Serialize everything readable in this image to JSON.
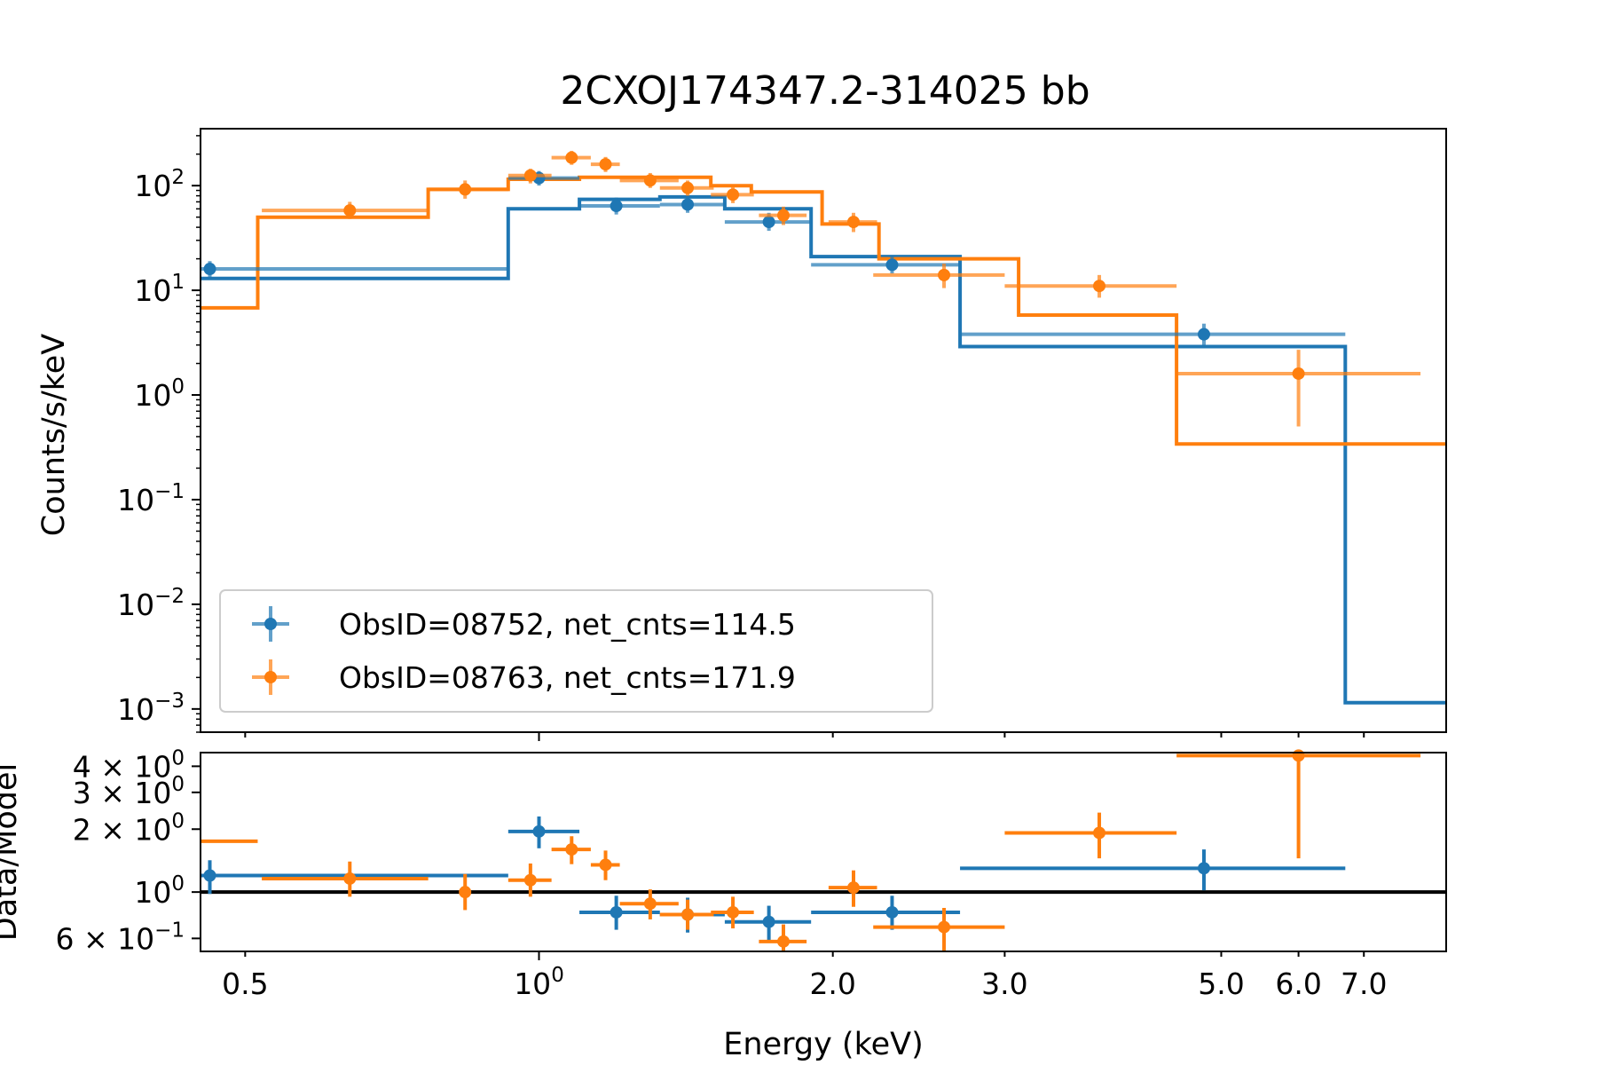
{
  "chart_data": {
    "title": "2CXOJ174347.2-314025 bb",
    "xlabel": "Energy (keV)",
    "x_scale": "log",
    "xlim": [
      0.45,
      8.5
    ],
    "x_ticks": [
      {
        "value": 0.5,
        "label": "0.5"
      },
      {
        "value": 1.0,
        "label": "10",
        "sup": "0"
      },
      {
        "value": 2.0,
        "label": "2.0"
      },
      {
        "value": 3.0,
        "label": "3.0"
      },
      {
        "value": 5.0,
        "label": "5.0"
      },
      {
        "value": 6.0,
        "label": "6.0"
      },
      {
        "value": 7.0,
        "label": "7.0"
      }
    ],
    "top_panel": {
      "type": "line",
      "ylabel": "Counts/s/keV",
      "y_scale": "log",
      "ylim": [
        0.0006,
        350
      ],
      "y_ticks": [
        {
          "value": 100,
          "label": "10",
          "sup": "2"
        },
        {
          "value": 10,
          "label": "10",
          "sup": "1"
        },
        {
          "value": 1,
          "label": "10",
          "sup": "0"
        },
        {
          "value": 0.1,
          "label": "10",
          "sup": "−1"
        },
        {
          "value": 0.01,
          "label": "10",
          "sup": "−2"
        },
        {
          "value": 0.001,
          "label": "10",
          "sup": "−3"
        }
      ],
      "legend_position": "lower-left",
      "series": [
        {
          "name": "ObsID=08752, net_cnts=114.5",
          "color": "#1f77b4",
          "data": [
            {
              "x": 0.46,
              "xlo": 0.45,
              "xhi": 0.93,
              "y": 16,
              "ylo": 13,
              "yhi": 19
            },
            {
              "x": 1.0,
              "xlo": 0.93,
              "xhi": 1.1,
              "y": 118,
              "ylo": 100,
              "yhi": 138
            },
            {
              "x": 1.2,
              "xlo": 1.1,
              "xhi": 1.33,
              "y": 64,
              "ylo": 53,
              "yhi": 77
            },
            {
              "x": 1.42,
              "xlo": 1.33,
              "xhi": 1.55,
              "y": 66,
              "ylo": 55,
              "yhi": 79
            },
            {
              "x": 1.72,
              "xlo": 1.55,
              "xhi": 1.9,
              "y": 45,
              "ylo": 37,
              "yhi": 55
            },
            {
              "x": 2.3,
              "xlo": 1.9,
              "xhi": 2.7,
              "y": 17.5,
              "ylo": 14.5,
              "yhi": 21
            },
            {
              "x": 4.8,
              "xlo": 2.7,
              "xhi": 6.7,
              "y": 3.8,
              "ylo": 3.0,
              "yhi": 4.8
            }
          ],
          "model": [
            {
              "xlo": 0.45,
              "xhi": 0.93,
              "y": 13
            },
            {
              "xlo": 0.93,
              "xhi": 1.1,
              "y": 60
            },
            {
              "xlo": 1.1,
              "xhi": 1.33,
              "y": 74
            },
            {
              "xlo": 1.33,
              "xhi": 1.55,
              "y": 78
            },
            {
              "xlo": 1.55,
              "xhi": 1.9,
              "y": 60
            },
            {
              "xlo": 1.9,
              "xhi": 2.7,
              "y": 21
            },
            {
              "xlo": 2.7,
              "xhi": 6.7,
              "y": 2.9
            },
            {
              "xlo": 6.7,
              "xhi": 8.5,
              "y": 0.00115
            }
          ]
        },
        {
          "name": "ObsID=08763, net_cnts=171.9",
          "color": "#ff7f0e",
          "data": [
            {
              "x": 0.64,
              "xlo": 0.52,
              "xhi": 0.77,
              "y": 58,
              "ylo": 48,
              "yhi": 70
            },
            {
              "x": 0.84,
              "xlo": 0.77,
              "xhi": 0.93,
              "y": 92,
              "ylo": 75,
              "yhi": 112
            },
            {
              "x": 0.98,
              "xlo": 0.93,
              "xhi": 1.03,
              "y": 125,
              "ylo": 105,
              "yhi": 145
            },
            {
              "x": 1.08,
              "xlo": 1.03,
              "xhi": 1.13,
              "y": 185,
              "ylo": 158,
              "yhi": 215
            },
            {
              "x": 1.17,
              "xlo": 1.13,
              "xhi": 1.21,
              "y": 160,
              "ylo": 135,
              "yhi": 188
            },
            {
              "x": 1.3,
              "xlo": 1.21,
              "xhi": 1.39,
              "y": 112,
              "ylo": 95,
              "yhi": 132
            },
            {
              "x": 1.42,
              "xlo": 1.33,
              "xhi": 1.51,
              "y": 95,
              "ylo": 80,
              "yhi": 112
            },
            {
              "x": 1.58,
              "xlo": 1.5,
              "xhi": 1.66,
              "y": 82,
              "ylo": 68,
              "yhi": 98
            },
            {
              "x": 1.78,
              "xlo": 1.68,
              "xhi": 1.88,
              "y": 52,
              "ylo": 42,
              "yhi": 63
            },
            {
              "x": 2.1,
              "xlo": 1.98,
              "xhi": 2.22,
              "y": 45,
              "ylo": 36,
              "yhi": 55
            },
            {
              "x": 2.6,
              "xlo": 2.2,
              "xhi": 3.0,
              "y": 14,
              "ylo": 10.5,
              "yhi": 18
            },
            {
              "x": 3.75,
              "xlo": 3.0,
              "xhi": 4.5,
              "y": 11,
              "ylo": 8.5,
              "yhi": 14
            },
            {
              "x": 6.0,
              "xlo": 4.5,
              "xhi": 8.0,
              "y": 1.6,
              "ylo": 0.5,
              "yhi": 2.7
            }
          ],
          "model": [
            {
              "xlo": 0.45,
              "xhi": 0.515,
              "y": 6.8
            },
            {
              "xlo": 0.515,
              "xhi": 0.77,
              "y": 50
            },
            {
              "xlo": 0.77,
              "xhi": 0.93,
              "y": 92
            },
            {
              "xlo": 0.93,
              "xhi": 1.1,
              "y": 115
            },
            {
              "xlo": 1.1,
              "xhi": 1.5,
              "y": 120
            },
            {
              "xlo": 1.5,
              "xhi": 1.65,
              "y": 100
            },
            {
              "xlo": 1.65,
              "xhi": 1.95,
              "y": 87
            },
            {
              "xlo": 1.95,
              "xhi": 2.23,
              "y": 43
            },
            {
              "xlo": 2.23,
              "xhi": 3.1,
              "y": 20
            },
            {
              "xlo": 3.1,
              "xhi": 4.5,
              "y": 5.8
            },
            {
              "xlo": 4.5,
              "xhi": 8.5,
              "y": 0.34
            }
          ]
        }
      ]
    },
    "bottom_panel": {
      "type": "scatter",
      "ylabel": "Data/Model",
      "y_scale": "log",
      "ylim": [
        0.52,
        4.65
      ],
      "reference_line": 1,
      "y_ticks": [
        {
          "value": 4,
          "label": "4 × 10",
          "sup": "0"
        },
        {
          "value": 3,
          "label": "3 × 10",
          "sup": "0"
        },
        {
          "value": 2,
          "label": "2 × 10",
          "sup": "0"
        },
        {
          "value": 1,
          "label": "10",
          "sup": "0"
        },
        {
          "value": 0.6,
          "label": "6 × 10",
          "sup": "−1"
        }
      ],
      "series": [
        {
          "name": "ObsID=08752, net_cnts=114.5",
          "color": "#1f77b4",
          "data": [
            {
              "x": 0.46,
              "xlo": 0.45,
              "xhi": 0.93,
              "y": 1.2,
              "ylo": 0.98,
              "yhi": 1.42
            },
            {
              "x": 1.0,
              "xlo": 0.93,
              "xhi": 1.1,
              "y": 1.95,
              "ylo": 1.62,
              "yhi": 2.3
            },
            {
              "x": 1.2,
              "xlo": 1.1,
              "xhi": 1.33,
              "y": 0.8,
              "ylo": 0.66,
              "yhi": 0.96
            },
            {
              "x": 1.42,
              "xlo": 1.33,
              "xhi": 1.55,
              "y": 0.78,
              "ylo": 0.64,
              "yhi": 0.94
            },
            {
              "x": 1.72,
              "xlo": 1.55,
              "xhi": 1.9,
              "y": 0.72,
              "ylo": 0.59,
              "yhi": 0.86
            },
            {
              "x": 2.3,
              "xlo": 1.9,
              "xhi": 2.7,
              "y": 0.8,
              "ylo": 0.66,
              "yhi": 0.96
            },
            {
              "x": 4.8,
              "xlo": 2.7,
              "xhi": 6.7,
              "y": 1.3,
              "ylo": 1.02,
              "yhi": 1.6
            }
          ]
        },
        {
          "name": "ObsID=08763, net_cnts=171.9",
          "color": "#ff7f0e",
          "data": [
            {
              "x": 0.45,
              "xlo": 0.45,
              "xhi": 0.515,
              "y": 1.75
            },
            {
              "x": 0.64,
              "xlo": 0.52,
              "xhi": 0.77,
              "y": 1.16,
              "ylo": 0.95,
              "yhi": 1.4
            },
            {
              "x": 0.84,
              "xlo": 0.84,
              "xhi": 0.84,
              "y": 1.0,
              "ylo": 0.82,
              "yhi": 1.22
            },
            {
              "x": 0.98,
              "xlo": 0.93,
              "xhi": 1.03,
              "y": 1.14,
              "ylo": 0.95,
              "yhi": 1.37
            },
            {
              "x": 1.08,
              "xlo": 1.03,
              "xhi": 1.13,
              "y": 1.6,
              "ylo": 1.36,
              "yhi": 1.85
            },
            {
              "x": 1.17,
              "xlo": 1.13,
              "xhi": 1.21,
              "y": 1.35,
              "ylo": 1.14,
              "yhi": 1.58
            },
            {
              "x": 1.3,
              "xlo": 1.21,
              "xhi": 1.39,
              "y": 0.88,
              "ylo": 0.74,
              "yhi": 1.03
            },
            {
              "x": 1.42,
              "xlo": 1.33,
              "xhi": 1.51,
              "y": 0.78,
              "ylo": 0.66,
              "yhi": 0.92
            },
            {
              "x": 1.58,
              "xlo": 1.5,
              "xhi": 1.66,
              "y": 0.8,
              "ylo": 0.67,
              "yhi": 0.95
            },
            {
              "x": 1.78,
              "xlo": 1.68,
              "xhi": 1.88,
              "y": 0.58,
              "ylo": 0.52,
              "yhi": 0.7
            },
            {
              "x": 2.1,
              "xlo": 1.98,
              "xhi": 2.22,
              "y": 1.05,
              "ylo": 0.85,
              "yhi": 1.27
            },
            {
              "x": 2.6,
              "xlo": 2.2,
              "xhi": 3.0,
              "y": 0.68,
              "ylo": 0.52,
              "yhi": 0.84
            },
            {
              "x": 3.75,
              "xlo": 3.0,
              "xhi": 4.5,
              "y": 1.92,
              "ylo": 1.45,
              "yhi": 2.4
            },
            {
              "x": 6.0,
              "xlo": 4.5,
              "xhi": 8.0,
              "y": 4.5,
              "ylo": 1.45,
              "yhi": 4.5
            }
          ]
        }
      ]
    }
  }
}
